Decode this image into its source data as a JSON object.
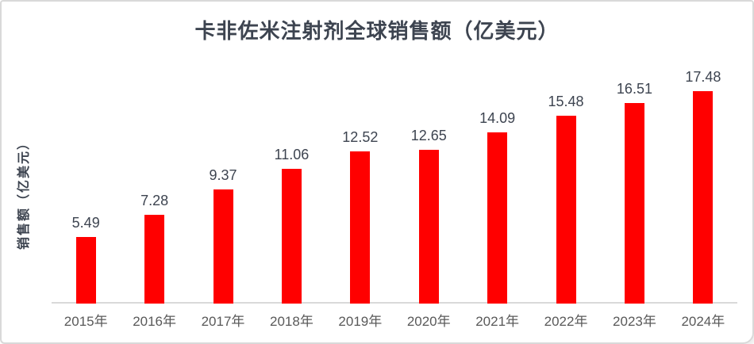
{
  "chart_data": {
    "type": "bar",
    "title": "卡非佐米注射剂全球销售额（亿美元）",
    "ylabel": "销售额（亿美元）",
    "xlabel": "",
    "categories": [
      "2015年",
      "2016年",
      "2017年",
      "2018年",
      "2019年",
      "2020年",
      "2021年",
      "2022年",
      "2023年",
      "2024年"
    ],
    "values": [
      5.49,
      7.28,
      9.37,
      11.06,
      12.52,
      12.65,
      14.09,
      15.48,
      16.51,
      17.48
    ],
    "data_labels": [
      "5.49",
      "7.28",
      "9.37",
      "11.06",
      "12.52",
      "12.65",
      "14.09",
      "15.48",
      "16.51",
      "17.48"
    ],
    "ylim": [
      0,
      17.48
    ],
    "grid": false,
    "legend_position": "none",
    "colors": {
      "bar": "#FF0000",
      "title_text": "#3d4450",
      "value_label_text": "#3d4450",
      "axis_tick_text": "#595959",
      "axis_line": "#D9D9D9",
      "background": "#FFFFFF",
      "card_border": "#D9D9D9"
    }
  }
}
